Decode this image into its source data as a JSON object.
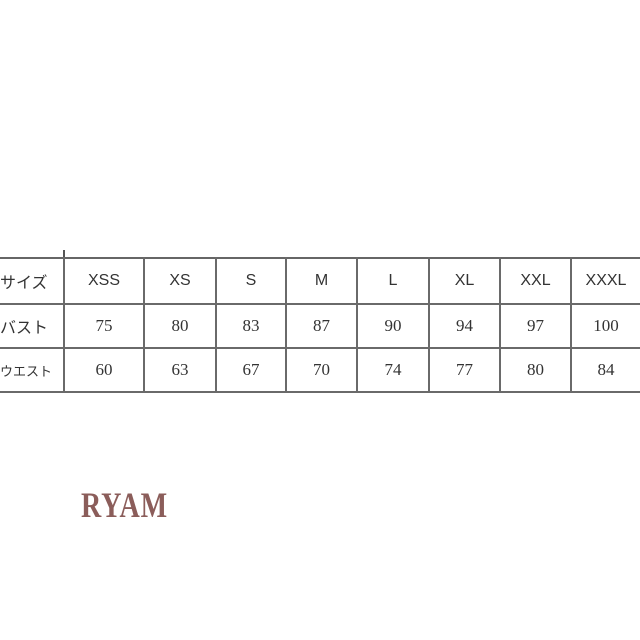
{
  "size_chart": {
    "row_labels": [
      "サイズ",
      "バスト",
      "ウエスト"
    ],
    "sizes": [
      "XSS",
      "XS",
      "S",
      "M",
      "L",
      "XL",
      "XXL",
      "XXXL"
    ],
    "bust": [
      "75",
      "80",
      "83",
      "87",
      "90",
      "94",
      "97",
      "100"
    ],
    "waist": [
      "60",
      "63",
      "67",
      "70",
      "74",
      "77",
      "80",
      "84"
    ]
  },
  "brand": {
    "text": "RYAM",
    "color": "#8b5d5a"
  }
}
